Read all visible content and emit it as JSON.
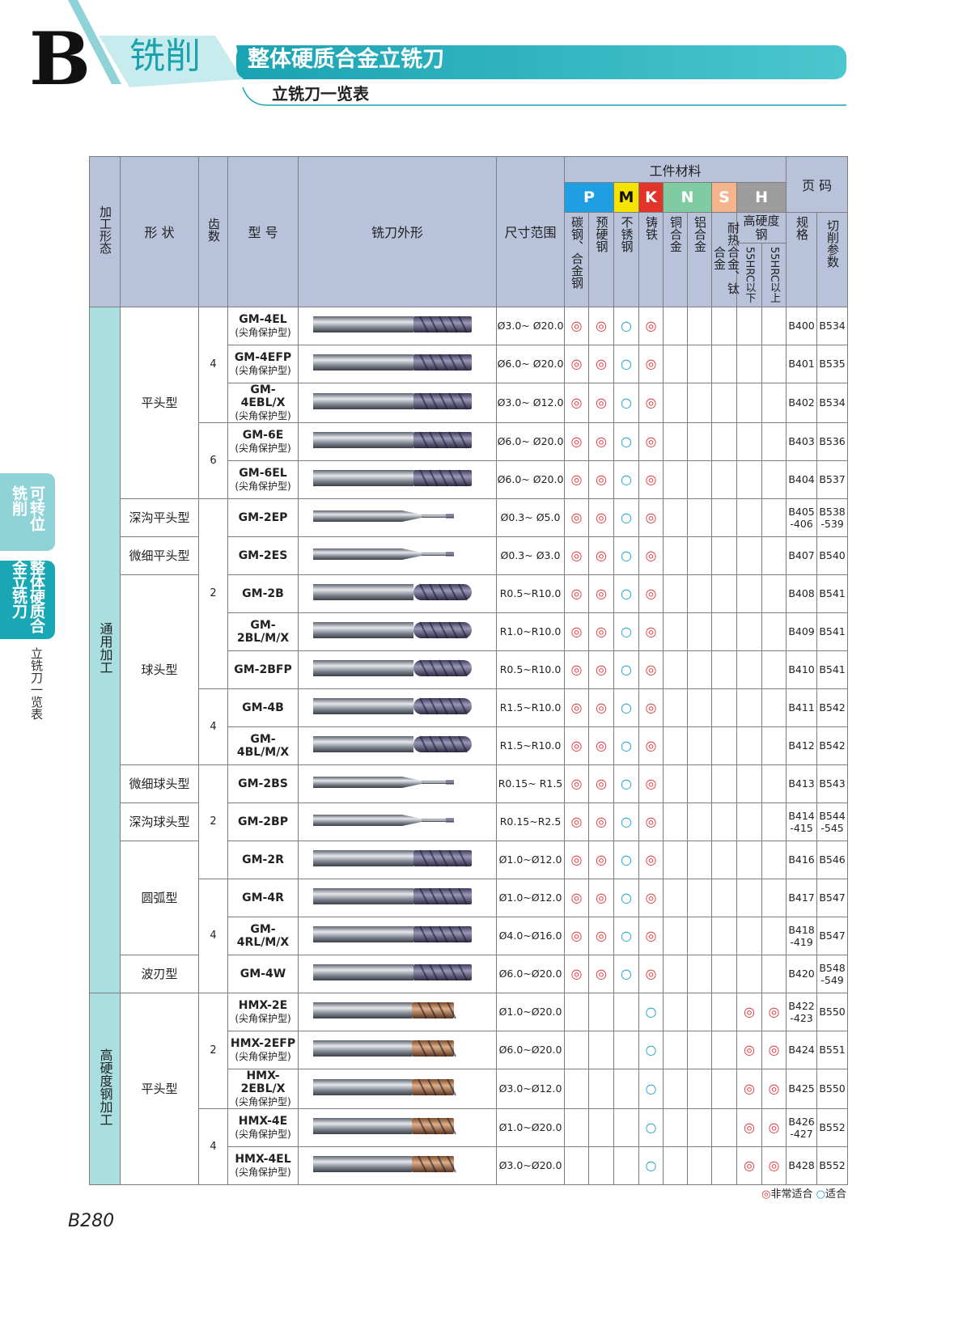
{
  "header": {
    "letter": "B",
    "section": "铣削",
    "title": "整体硬质合金立铣刀",
    "subtitle": "立铣刀一览表"
  },
  "side_tabs": [
    "可转位铣削",
    "整体硬质合金立铣刀"
  ],
  "side_label": "立铣刀一览表",
  "table": {
    "columns": {
      "process": "加工形态",
      "shape": "形 状",
      "teeth": "齿数",
      "model": "型 号",
      "image": "铣刀外形",
      "size": "尺寸范围",
      "material": "工件材料",
      "pages": "页 码"
    },
    "material_groups": [
      "P",
      "M",
      "K",
      "N",
      "S",
      "H"
    ],
    "materials": [
      "碳钢、合金钢",
      "预硬钢",
      "不锈钢",
      "铸铁",
      "铜合金",
      "铝合金",
      "耐热合金、钛合金",
      "高硬度钢"
    ],
    "hardness": [
      "55HRC以下",
      "55HRC以上"
    ],
    "page_columns": [
      "规格",
      "切削参数"
    ],
    "rows": [
      {
        "process": "通用加工",
        "shape": "平头型",
        "teeth": 4,
        "model": "GM-4EL",
        "note": "(尖角保护型)",
        "size": "Ø3.0~ Ø20.0",
        "marks": [
          "◎",
          "◎",
          "○",
          "◎",
          null,
          null,
          null,
          null,
          null
        ],
        "spec_page": "B400",
        "cutting_page": "B534"
      },
      {
        "process": "通用加工",
        "shape": "平头型",
        "teeth": 4,
        "model": "GM-4EFP",
        "note": "(尖角保护型)",
        "size": "Ø6.0~ Ø20.0",
        "marks": [
          "◎",
          "◎",
          "○",
          "◎",
          null,
          null,
          null,
          null,
          null
        ],
        "spec_page": "B401",
        "cutting_page": "B535"
      },
      {
        "process": "通用加工",
        "shape": "平头型",
        "teeth": 4,
        "model": "GM-4EBL/X",
        "note": "(尖角保护型)",
        "size": "Ø3.0~ Ø12.0",
        "marks": [
          "◎",
          "◎",
          "○",
          "◎",
          null,
          null,
          null,
          null,
          null
        ],
        "spec_page": "B402",
        "cutting_page": "B534"
      },
      {
        "process": "通用加工",
        "shape": "平头型",
        "teeth": 6,
        "model": "GM-6E",
        "note": "(尖角保护型)",
        "size": "Ø6.0~ Ø20.0",
        "marks": [
          "◎",
          "◎",
          "○",
          "◎",
          null,
          null,
          null,
          null,
          null
        ],
        "spec_page": "B403",
        "cutting_page": "B536"
      },
      {
        "process": "通用加工",
        "shape": "平头型",
        "teeth": 6,
        "model": "GM-6EL",
        "note": "(尖角保护型)",
        "size": "Ø6.0~ Ø20.0",
        "marks": [
          "◎",
          "◎",
          "○",
          "◎",
          null,
          null,
          null,
          null,
          null
        ],
        "spec_page": "B404",
        "cutting_page": "B537"
      },
      {
        "process": "通用加工",
        "shape": "深沟平头型",
        "teeth": 2,
        "model": "GM-2EP",
        "size": "Ø0.3~ Ø5.0",
        "marks": [
          "◎",
          "◎",
          "○",
          "◎",
          null,
          null,
          null,
          null,
          null
        ],
        "spec_page": "B405\n-406",
        "cutting_page": "B538\n-539"
      },
      {
        "process": "通用加工",
        "shape": "微细平头型",
        "teeth": 2,
        "model": "GM-2ES",
        "size": "Ø0.3~ Ø3.0",
        "marks": [
          "◎",
          "◎",
          "○",
          "◎",
          null,
          null,
          null,
          null,
          null
        ],
        "spec_page": "B407",
        "cutting_page": "B540"
      },
      {
        "process": "通用加工",
        "shape": "球头型",
        "teeth": 2,
        "model": "GM-2B",
        "size": "R0.5~R10.0",
        "marks": [
          "◎",
          "◎",
          "○",
          "◎",
          null,
          null,
          null,
          null,
          null
        ],
        "spec_page": "B408",
        "cutting_page": "B541"
      },
      {
        "process": "通用加工",
        "shape": "球头型",
        "teeth": 2,
        "model": "GM-2BL/M/X",
        "size": "R1.0~R10.0",
        "marks": [
          "◎",
          "◎",
          "○",
          "◎",
          null,
          null,
          null,
          null,
          null
        ],
        "spec_page": "B409",
        "cutting_page": "B541"
      },
      {
        "process": "通用加工",
        "shape": "球头型",
        "teeth": 2,
        "model": "GM-2BFP",
        "size": "R0.5~R10.0",
        "marks": [
          "◎",
          "◎",
          "○",
          "◎",
          null,
          null,
          null,
          null,
          null
        ],
        "spec_page": "B410",
        "cutting_page": "B541"
      },
      {
        "process": "通用加工",
        "shape": "球头型",
        "teeth": 4,
        "model": "GM-4B",
        "size": "R1.5~R10.0",
        "marks": [
          "◎",
          "◎",
          "○",
          "◎",
          null,
          null,
          null,
          null,
          null
        ],
        "spec_page": "B411",
        "cutting_page": "B542"
      },
      {
        "process": "通用加工",
        "shape": "球头型",
        "teeth": 4,
        "model": "GM-4BL/M/X",
        "size": "R1.5~R10.0",
        "marks": [
          "◎",
          "◎",
          "○",
          "◎",
          null,
          null,
          null,
          null,
          null
        ],
        "spec_page": "B412",
        "cutting_page": "B542"
      },
      {
        "process": "通用加工",
        "shape": "微细球头型",
        "teeth": 2,
        "model": "GM-2BS",
        "size": "R0.15~ R1.5",
        "marks": [
          "◎",
          "◎",
          "○",
          "◎",
          null,
          null,
          null,
          null,
          null
        ],
        "spec_page": "B413",
        "cutting_page": "B543"
      },
      {
        "process": "通用加工",
        "shape": "深沟球头型",
        "teeth": 2,
        "model": "GM-2BP",
        "size": "R0.15~R2.5",
        "marks": [
          "◎",
          "◎",
          "○",
          "◎",
          null,
          null,
          null,
          null,
          null
        ],
        "spec_page": "B414\n-415",
        "cutting_page": "B544\n-545"
      },
      {
        "process": "通用加工",
        "shape": "圆弧型",
        "teeth": 2,
        "model": "GM-2R",
        "size": "Ø1.0~Ø12.0",
        "marks": [
          "◎",
          "◎",
          "○",
          "◎",
          null,
          null,
          null,
          null,
          null
        ],
        "spec_page": "B416",
        "cutting_page": "B546"
      },
      {
        "process": "通用加工",
        "shape": "圆弧型",
        "teeth": 4,
        "model": "GM-4R",
        "size": "Ø1.0~Ø12.0",
        "marks": [
          "◎",
          "◎",
          "○",
          "◎",
          null,
          null,
          null,
          null,
          null
        ],
        "spec_page": "B417",
        "cutting_page": "B547"
      },
      {
        "process": "通用加工",
        "shape": "圆弧型",
        "teeth": 4,
        "model": "GM-4RL/M/X",
        "size": "Ø4.0~Ø16.0",
        "marks": [
          "◎",
          "◎",
          "○",
          "◎",
          null,
          null,
          null,
          null,
          null
        ],
        "spec_page": "B418\n-419",
        "cutting_page": "B547"
      },
      {
        "process": "通用加工",
        "shape": "波刃型",
        "teeth": 4,
        "model": "GM-4W",
        "size": "Ø6.0~Ø20.0",
        "marks": [
          "◎",
          "◎",
          "○",
          "◎",
          null,
          null,
          null,
          null,
          null
        ],
        "spec_page": "B420",
        "cutting_page": "B548\n-549"
      },
      {
        "process": "高硬度钢加工",
        "shape": "平头型",
        "teeth": 2,
        "model": "HMX-2E",
        "note": "(尖角保护型)",
        "size": "Ø1.0~Ø20.0",
        "marks": [
          null,
          null,
          null,
          "○",
          null,
          null,
          null,
          "◎",
          "◎"
        ],
        "spec_page": "B422\n-423",
        "cutting_page": "B550"
      },
      {
        "process": "高硬度钢加工",
        "shape": "平头型",
        "teeth": 2,
        "model": "HMX-2EFP",
        "note": "(尖角保护型)",
        "size": "Ø6.0~Ø20.0",
        "marks": [
          null,
          null,
          null,
          "○",
          null,
          null,
          null,
          "◎",
          "◎"
        ],
        "spec_page": "B424",
        "cutting_page": "B551"
      },
      {
        "process": "高硬度钢加工",
        "shape": "平头型",
        "teeth": 2,
        "model": "HMX-2EBL/X",
        "note": "(尖角保护型)",
        "size": "Ø3.0~Ø12.0",
        "marks": [
          null,
          null,
          null,
          "○",
          null,
          null,
          null,
          "◎",
          "◎"
        ],
        "spec_page": "B425",
        "cutting_page": "B550"
      },
      {
        "process": "高硬度钢加工",
        "shape": "平头型",
        "teeth": 4,
        "model": "HMX-4E",
        "note": "(尖角保护型)",
        "size": "Ø1.0~Ø20.0",
        "marks": [
          null,
          null,
          null,
          "○",
          null,
          null,
          null,
          "◎",
          "◎"
        ],
        "spec_page": "B426\n-427",
        "cutting_page": "B552"
      },
      {
        "process": "高硬度钢加工",
        "shape": "平头型",
        "teeth": 4,
        "model": "HMX-4EL",
        "note": "(尖角保护型)",
        "size": "Ø3.0~Ø20.0",
        "marks": [
          null,
          null,
          null,
          "○",
          null,
          null,
          null,
          "◎",
          "◎"
        ],
        "spec_page": "B428",
        "cutting_page": "B552"
      }
    ]
  },
  "legend": [
    {
      "symbol": "◎",
      "label": "非常适合"
    },
    {
      "symbol": "○",
      "label": "适合"
    }
  ],
  "page_number": "B280"
}
